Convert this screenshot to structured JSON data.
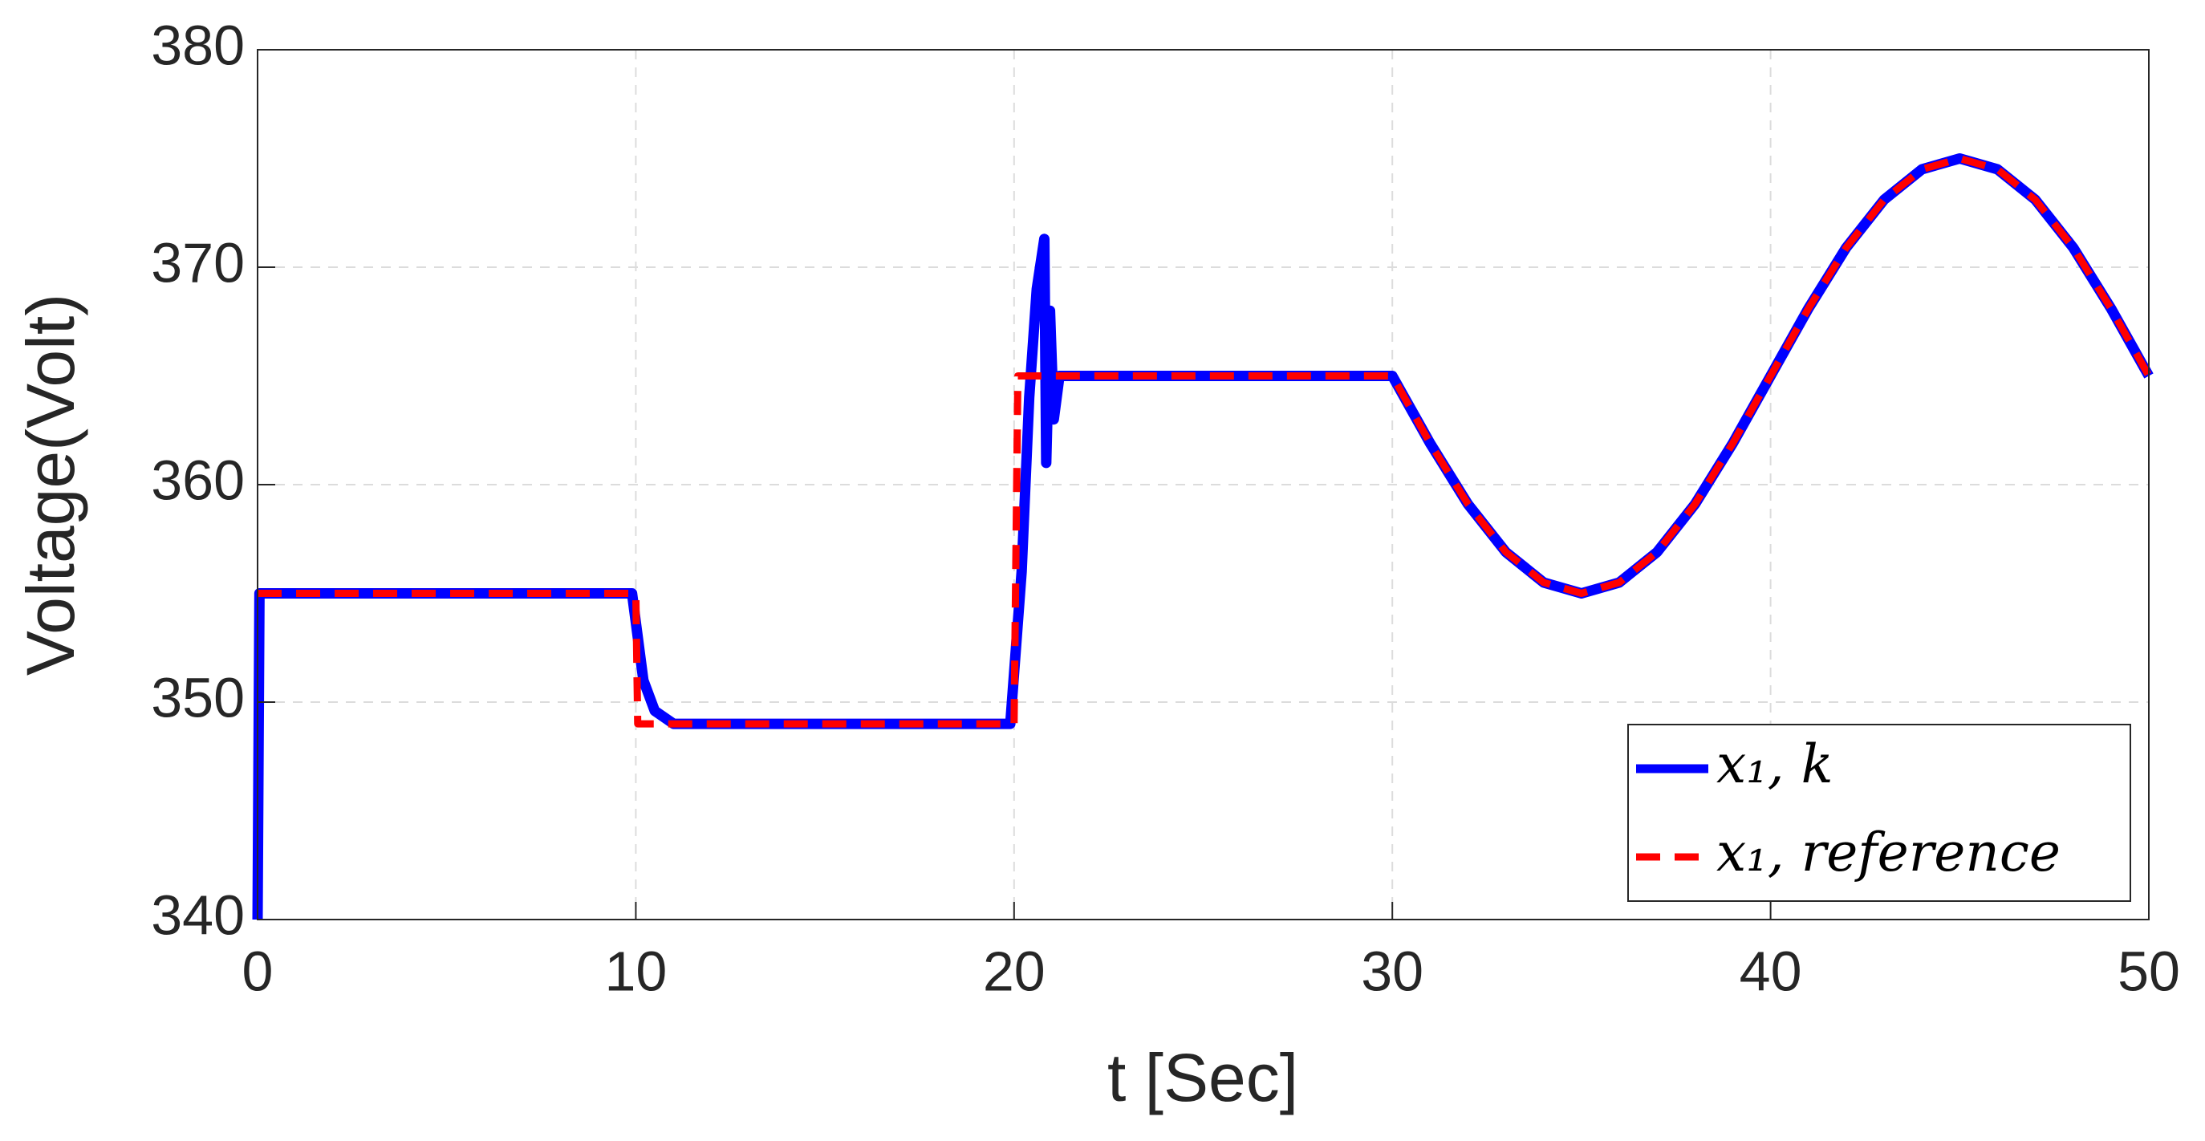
{
  "chart_data": {
    "type": "line",
    "xlabel": "t [Sec]",
    "ylabel": "Voltage(Volt)",
    "xlim": [
      0,
      50
    ],
    "xticks": [
      0,
      10,
      20,
      30,
      40,
      50
    ],
    "ylim": [
      340,
      380
    ],
    "yticks": [
      340,
      350,
      360,
      370,
      380
    ],
    "grid": true,
    "legend": "lower right",
    "series": [
      {
        "name": "x₁, k",
        "color": "#0000ff",
        "style": "solid",
        "x": [
          0,
          0.05,
          5,
          9.9,
          10.2,
          10.5,
          11,
          15,
          19.9,
          20.2,
          20.4,
          20.6,
          20.8,
          20.85,
          20.95,
          21.05,
          21.2,
          25,
          30,
          31,
          32,
          33,
          34,
          35,
          36,
          37,
          38,
          39,
          40,
          41,
          42,
          43,
          44,
          45,
          46,
          47,
          48,
          49,
          50
        ],
        "values": [
          340,
          355,
          355,
          355,
          351,
          349.6,
          349,
          349,
          349,
          356,
          364,
          369,
          371.3,
          361,
          368,
          363,
          365,
          365,
          365,
          361.9,
          359.1,
          356.9,
          355.5,
          355,
          355.5,
          356.9,
          359.1,
          361.9,
          365,
          368.1,
          370.9,
          373.1,
          374.5,
          375,
          374.5,
          373.1,
          370.9,
          368.1,
          365
        ]
      },
      {
        "name": "x₁, reference",
        "color": "#ff0000",
        "style": "dashed",
        "x": [
          0,
          10,
          10.05,
          20,
          20.1,
          30,
          31,
          32,
          33,
          34,
          35,
          36,
          37,
          38,
          39,
          40,
          41,
          42,
          43,
          44,
          45,
          46,
          47,
          48,
          49,
          50
        ],
        "values": [
          355,
          355,
          349,
          349,
          365,
          365,
          361.9,
          359.1,
          356.9,
          355.5,
          355,
          355.5,
          356.9,
          359.1,
          361.9,
          365,
          368.1,
          370.9,
          373.1,
          374.5,
          375,
          374.5,
          373.1,
          370.9,
          368.1,
          365
        ]
      }
    ]
  }
}
